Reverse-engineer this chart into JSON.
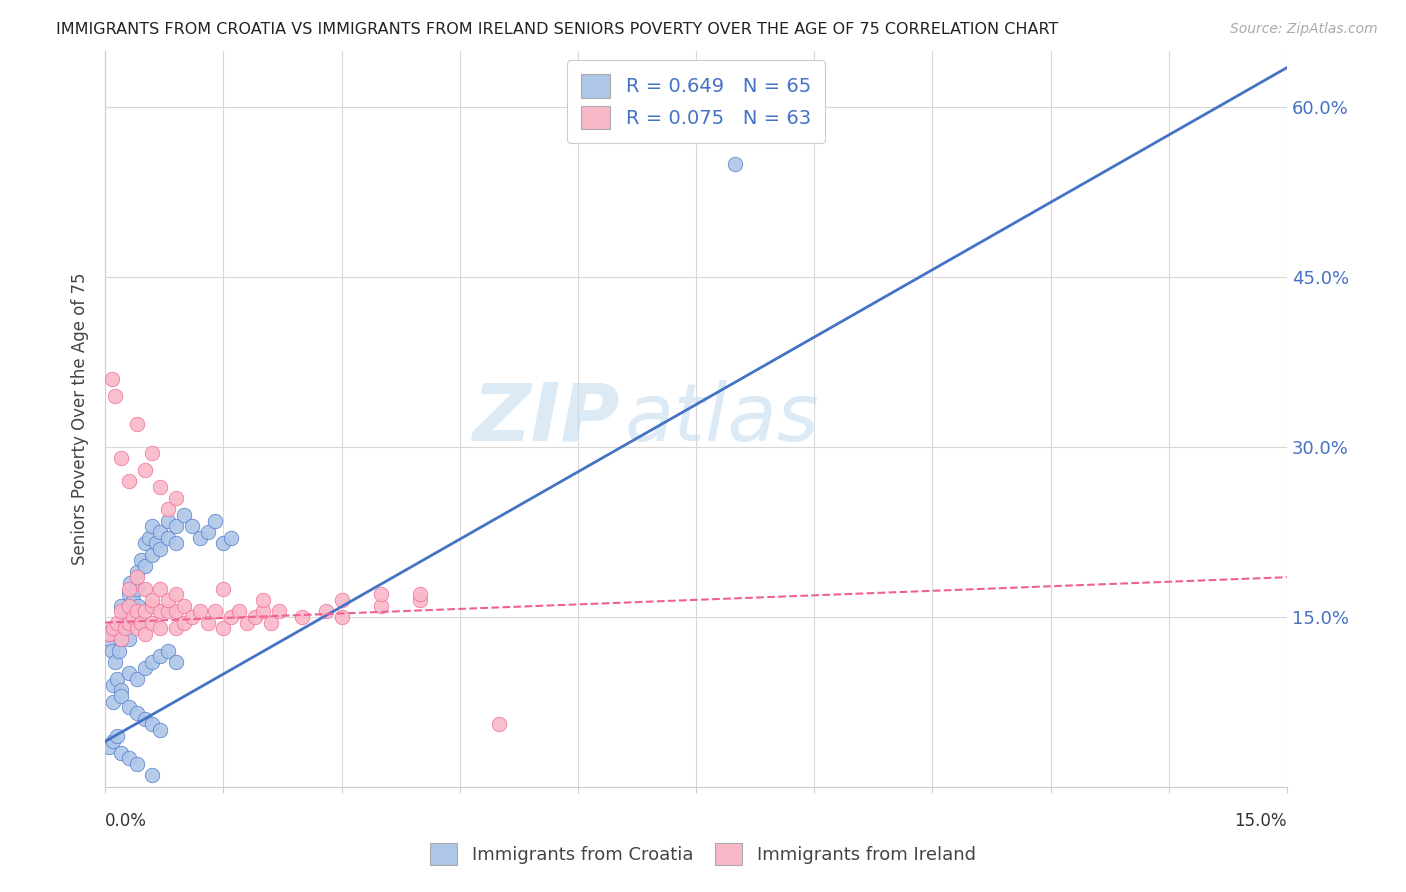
{
  "title": "IMMIGRANTS FROM CROATIA VS IMMIGRANTS FROM IRELAND SENIORS POVERTY OVER THE AGE OF 75 CORRELATION CHART",
  "source": "Source: ZipAtlas.com",
  "ylabel": "Seniors Poverty Over the Age of 75",
  "xlim": [
    0.0,
    0.15
  ],
  "ylim": [
    0.0,
    0.65
  ],
  "croatia_color": "#aec6e8",
  "ireland_color": "#f9b8c8",
  "croatia_line_color": "#4472c4",
  "ireland_line_color": "#f06090",
  "legend_R_croatia": "R = 0.649",
  "legend_N_croatia": "N = 65",
  "legend_R_ireland": "R = 0.075",
  "legend_N_ireland": "N = 63",
  "watermark_zip": "ZIP",
  "watermark_atlas": "atlas",
  "croatia_line_x0": 0.0,
  "croatia_line_y0": 0.04,
  "croatia_line_x1": 0.15,
  "croatia_line_y1": 0.635,
  "ireland_line_x0": 0.0,
  "ireland_line_y0": 0.145,
  "ireland_line_x1": 0.15,
  "ireland_line_y1": 0.185,
  "yticks": [
    0.0,
    0.15,
    0.3,
    0.45,
    0.6
  ],
  "ytick_labels": [
    "0.0%",
    "15.0%",
    "30.0%",
    "45.0%",
    "60.0%"
  ],
  "croatia_scatter_x": [
    0.0005,
    0.0008,
    0.001,
    0.0012,
    0.0015,
    0.0018,
    0.002,
    0.002,
    0.0022,
    0.0025,
    0.0028,
    0.003,
    0.003,
    0.003,
    0.0032,
    0.0035,
    0.0038,
    0.004,
    0.004,
    0.0042,
    0.0045,
    0.005,
    0.005,
    0.0055,
    0.006,
    0.006,
    0.0065,
    0.007,
    0.007,
    0.008,
    0.008,
    0.009,
    0.009,
    0.01,
    0.011,
    0.012,
    0.013,
    0.014,
    0.015,
    0.016,
    0.001,
    0.0015,
    0.002,
    0.003,
    0.004,
    0.005,
    0.006,
    0.007,
    0.008,
    0.009,
    0.001,
    0.002,
    0.003,
    0.004,
    0.005,
    0.006,
    0.007,
    0.0005,
    0.001,
    0.0015,
    0.002,
    0.003,
    0.004,
    0.006,
    0.08
  ],
  "croatia_scatter_y": [
    0.13,
    0.12,
    0.14,
    0.11,
    0.135,
    0.12,
    0.16,
    0.13,
    0.145,
    0.155,
    0.14,
    0.17,
    0.15,
    0.13,
    0.18,
    0.165,
    0.155,
    0.19,
    0.175,
    0.16,
    0.2,
    0.215,
    0.195,
    0.22,
    0.23,
    0.205,
    0.215,
    0.225,
    0.21,
    0.235,
    0.22,
    0.23,
    0.215,
    0.24,
    0.23,
    0.22,
    0.225,
    0.235,
    0.215,
    0.22,
    0.09,
    0.095,
    0.085,
    0.1,
    0.095,
    0.105,
    0.11,
    0.115,
    0.12,
    0.11,
    0.075,
    0.08,
    0.07,
    0.065,
    0.06,
    0.055,
    0.05,
    0.035,
    0.04,
    0.045,
    0.03,
    0.025,
    0.02,
    0.01,
    0.55
  ],
  "ireland_scatter_x": [
    0.0005,
    0.001,
    0.0015,
    0.002,
    0.002,
    0.0025,
    0.003,
    0.003,
    0.0035,
    0.004,
    0.004,
    0.0045,
    0.005,
    0.005,
    0.006,
    0.006,
    0.007,
    0.007,
    0.008,
    0.009,
    0.009,
    0.01,
    0.01,
    0.011,
    0.012,
    0.013,
    0.014,
    0.015,
    0.016,
    0.017,
    0.018,
    0.019,
    0.02,
    0.021,
    0.022,
    0.025,
    0.028,
    0.03,
    0.035,
    0.04,
    0.0008,
    0.0012,
    0.002,
    0.003,
    0.004,
    0.005,
    0.006,
    0.007,
    0.008,
    0.009,
    0.003,
    0.004,
    0.005,
    0.006,
    0.007,
    0.008,
    0.009,
    0.015,
    0.02,
    0.03,
    0.035,
    0.04,
    0.05
  ],
  "ireland_scatter_y": [
    0.135,
    0.14,
    0.145,
    0.13,
    0.155,
    0.14,
    0.145,
    0.16,
    0.15,
    0.14,
    0.155,
    0.145,
    0.155,
    0.135,
    0.16,
    0.145,
    0.155,
    0.14,
    0.155,
    0.14,
    0.155,
    0.145,
    0.16,
    0.15,
    0.155,
    0.145,
    0.155,
    0.14,
    0.15,
    0.155,
    0.145,
    0.15,
    0.155,
    0.145,
    0.155,
    0.15,
    0.155,
    0.15,
    0.16,
    0.165,
    0.36,
    0.345,
    0.29,
    0.27,
    0.32,
    0.28,
    0.295,
    0.265,
    0.245,
    0.255,
    0.175,
    0.185,
    0.175,
    0.165,
    0.175,
    0.165,
    0.17,
    0.175,
    0.165,
    0.165,
    0.17,
    0.17,
    0.055
  ]
}
